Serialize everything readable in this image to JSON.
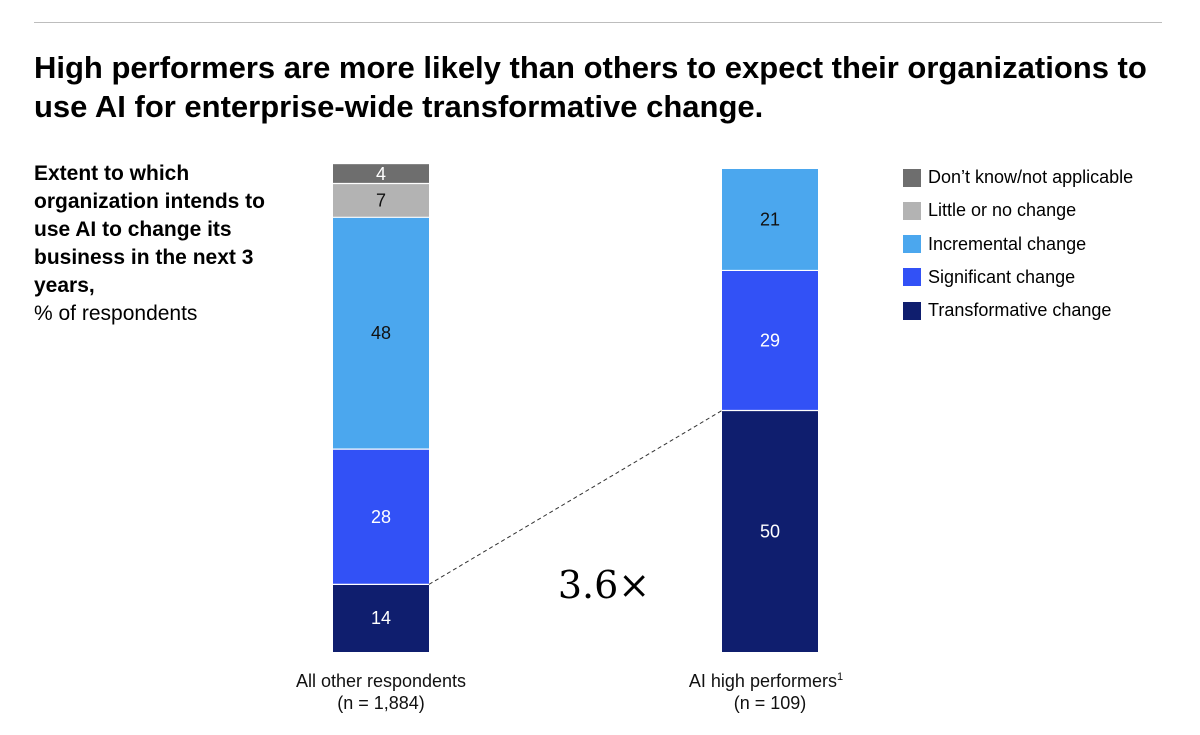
{
  "title": "High performers are more likely than others to expect their organizations to use AI for enterprise-wide transformative change.",
  "subtitle": {
    "bold": "Extent to which organization intends to use AI to change its business in the next 3 years,",
    "unit": "% of respondents"
  },
  "legend": [
    {
      "label": "Don’t know/not applicable",
      "color": "#6e6e6e"
    },
    {
      "label": "Little or no change",
      "color": "#b3b3b3"
    },
    {
      "label": "Incremental change",
      "color": "#4ba7ee"
    },
    {
      "label": "Significant change",
      "color": "#3251f6"
    },
    {
      "label": "Transformative change",
      "color": "#0f1e6e"
    }
  ],
  "chart_data": {
    "type": "bar",
    "stacked": true,
    "unit": "% of respondents",
    "categories": [
      {
        "name": "All other respondents",
        "sample": "(n = 1,884)"
      },
      {
        "name": "AI high performers",
        "footnote": "1",
        "sample": "(n = 109)"
      }
    ],
    "series": [
      {
        "name": "Transformative change",
        "values": [
          14,
          50
        ],
        "color": "#0f1e6e",
        "label_color": "#ffffff"
      },
      {
        "name": "Significant change",
        "values": [
          28,
          29
        ],
        "color": "#3251f6",
        "label_color": "#ffffff"
      },
      {
        "name": "Incremental change",
        "values": [
          48,
          21
        ],
        "color": "#4ba7ee",
        "label_color": "#111111"
      },
      {
        "name": "Little or no change",
        "values": [
          7,
          0
        ],
        "color": "#b3b3b3",
        "label_color": "#111111"
      },
      {
        "name": "Don’t know/not applicable",
        "values": [
          4,
          0
        ],
        "color": "#6e6e6e",
        "label_color": "#ffffff"
      }
    ],
    "comparison": {
      "label": "3.6×",
      "from_category": 0,
      "to_category": 1,
      "series": "Transformative change"
    },
    "ylim": [
      0,
      100
    ]
  }
}
